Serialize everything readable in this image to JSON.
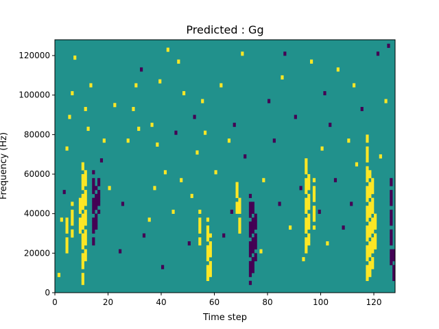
{
  "chart_data": {
    "type": "heatmap",
    "title": "Predicted : Gg",
    "xlabel": "Time step",
    "ylabel": "Frequency (Hz)",
    "xlim": [
      0,
      128
    ],
    "ylim": [
      0,
      128000
    ],
    "n_cols": 128,
    "n_rows": 64,
    "xticks": [
      0,
      20,
      40,
      60,
      80,
      100,
      120
    ],
    "yticks": [
      0,
      20000,
      40000,
      60000,
      80000,
      100000,
      120000
    ],
    "ytick_labels": [
      "0",
      "20000",
      "40000",
      "60000",
      "80000",
      "100000",
      "120000"
    ],
    "colors": {
      "background": "#21918c",
      "high": "#fde725",
      "low": "#440154"
    },
    "runs": [
      [
        10,
        2,
        32,
        1
      ],
      [
        11,
        8,
        30,
        1
      ],
      [
        9,
        14,
        24,
        1
      ],
      [
        6,
        14,
        22,
        1
      ],
      [
        4,
        10,
        18,
        1
      ],
      [
        14,
        12,
        30,
        -1
      ],
      [
        15,
        16,
        26,
        -1
      ],
      [
        16,
        20,
        28,
        -1
      ],
      [
        57,
        2,
        18,
        1
      ],
      [
        58,
        4,
        14,
        1
      ],
      [
        54,
        12,
        20,
        1
      ],
      [
        73,
        2,
        24,
        -1
      ],
      [
        74,
        4,
        22,
        -1
      ],
      [
        75,
        8,
        20,
        -1
      ],
      [
        69,
        14,
        24,
        1
      ],
      [
        68,
        20,
        28,
        1
      ],
      [
        94,
        10,
        34,
        1
      ],
      [
        95,
        12,
        30,
        1
      ],
      [
        97,
        16,
        28,
        1
      ],
      [
        117,
        2,
        39,
        1
      ],
      [
        118,
        4,
        30,
        1
      ],
      [
        119,
        6,
        28,
        1
      ],
      [
        120,
        10,
        20,
        1
      ],
      [
        126,
        6,
        28,
        -1
      ],
      [
        127,
        2,
        10,
        -1
      ]
    ],
    "cells": [
      [
        1,
        4,
        1
      ],
      [
        2,
        18,
        1
      ],
      [
        3,
        25,
        -1
      ],
      [
        4,
        36,
        1
      ],
      [
        5,
        44,
        1
      ],
      [
        6,
        50,
        1
      ],
      [
        7,
        59,
        1
      ],
      [
        11,
        46,
        1
      ],
      [
        12,
        41,
        1
      ],
      [
        13,
        52,
        1
      ],
      [
        17,
        33,
        -1
      ],
      [
        18,
        38,
        1
      ],
      [
        20,
        26,
        1
      ],
      [
        22,
        47,
        1
      ],
      [
        24,
        10,
        -1
      ],
      [
        25,
        22,
        -1
      ],
      [
        27,
        38,
        1
      ],
      [
        29,
        46,
        1
      ],
      [
        30,
        52,
        1
      ],
      [
        31,
        41,
        1
      ],
      [
        32,
        56,
        -1
      ],
      [
        33,
        14,
        -1
      ],
      [
        35,
        18,
        1
      ],
      [
        36,
        42,
        1
      ],
      [
        37,
        26,
        1
      ],
      [
        38,
        37,
        1
      ],
      [
        39,
        53,
        1
      ],
      [
        40,
        6,
        -1
      ],
      [
        41,
        30,
        1
      ],
      [
        42,
        61,
        1
      ],
      [
        44,
        20,
        1
      ],
      [
        45,
        40,
        -1
      ],
      [
        46,
        58,
        1
      ],
      [
        47,
        28,
        1
      ],
      [
        48,
        50,
        1
      ],
      [
        50,
        12,
        -1
      ],
      [
        51,
        24,
        1
      ],
      [
        52,
        44,
        -1
      ],
      [
        53,
        35,
        1
      ],
      [
        55,
        48,
        1
      ],
      [
        56,
        40,
        1
      ],
      [
        60,
        30,
        1
      ],
      [
        62,
        52,
        1
      ],
      [
        63,
        14,
        -1
      ],
      [
        65,
        38,
        1
      ],
      [
        66,
        20,
        -1
      ],
      [
        67,
        42,
        -1
      ],
      [
        70,
        60,
        1
      ],
      [
        71,
        34,
        -1
      ],
      [
        77,
        10,
        1
      ],
      [
        78,
        28,
        1
      ],
      [
        80,
        48,
        -1
      ],
      [
        82,
        38,
        -1
      ],
      [
        84,
        22,
        -1
      ],
      [
        85,
        54,
        1
      ],
      [
        86,
        60,
        -1
      ],
      [
        88,
        16,
        1
      ],
      [
        90,
        44,
        -1
      ],
      [
        92,
        26,
        -1
      ],
      [
        93,
        8,
        1
      ],
      [
        96,
        58,
        1
      ],
      [
        99,
        20,
        -1
      ],
      [
        100,
        36,
        1
      ],
      [
        101,
        50,
        -1
      ],
      [
        102,
        12,
        1
      ],
      [
        103,
        42,
        -1
      ],
      [
        105,
        28,
        -1
      ],
      [
        106,
        56,
        1
      ],
      [
        108,
        16,
        -1
      ],
      [
        110,
        38,
        1
      ],
      [
        111,
        22,
        -1
      ],
      [
        112,
        52,
        1
      ],
      [
        113,
        32,
        1
      ],
      [
        115,
        46,
        -1
      ],
      [
        121,
        60,
        -1
      ],
      [
        122,
        34,
        1
      ],
      [
        124,
        48,
        1
      ],
      [
        125,
        62,
        -1
      ]
    ]
  }
}
